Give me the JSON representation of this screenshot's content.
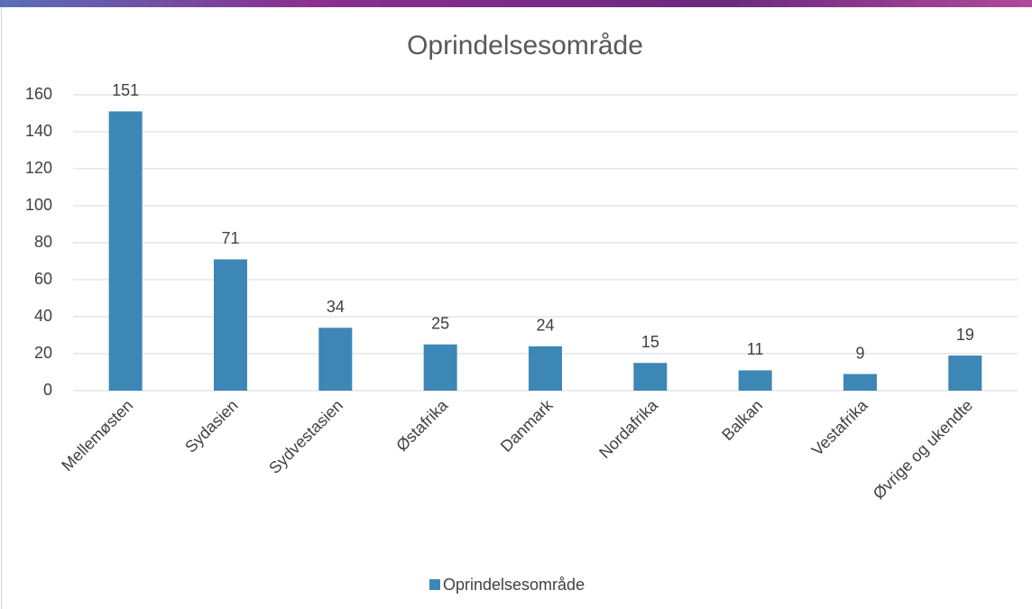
{
  "chart_data": {
    "type": "bar",
    "title": "Oprindelsesområde",
    "categories": [
      "Mellemøsten",
      "Sydasien",
      "Sydvestasien",
      "Østafrika",
      "Danmark",
      "Nordafrika",
      "Balkan",
      "Vestafrika",
      "Øvrige og ukendte"
    ],
    "series": [
      {
        "name": "Oprindelsesområde",
        "color": "#3d87b6",
        "values": [
          151,
          71,
          34,
          25,
          24,
          15,
          11,
          9,
          19
        ]
      }
    ],
    "ylim": [
      0,
      160
    ],
    "yticks": [
      0,
      20,
      40,
      60,
      80,
      100,
      120,
      140,
      160
    ],
    "grid": true,
    "legend": "bottom"
  }
}
